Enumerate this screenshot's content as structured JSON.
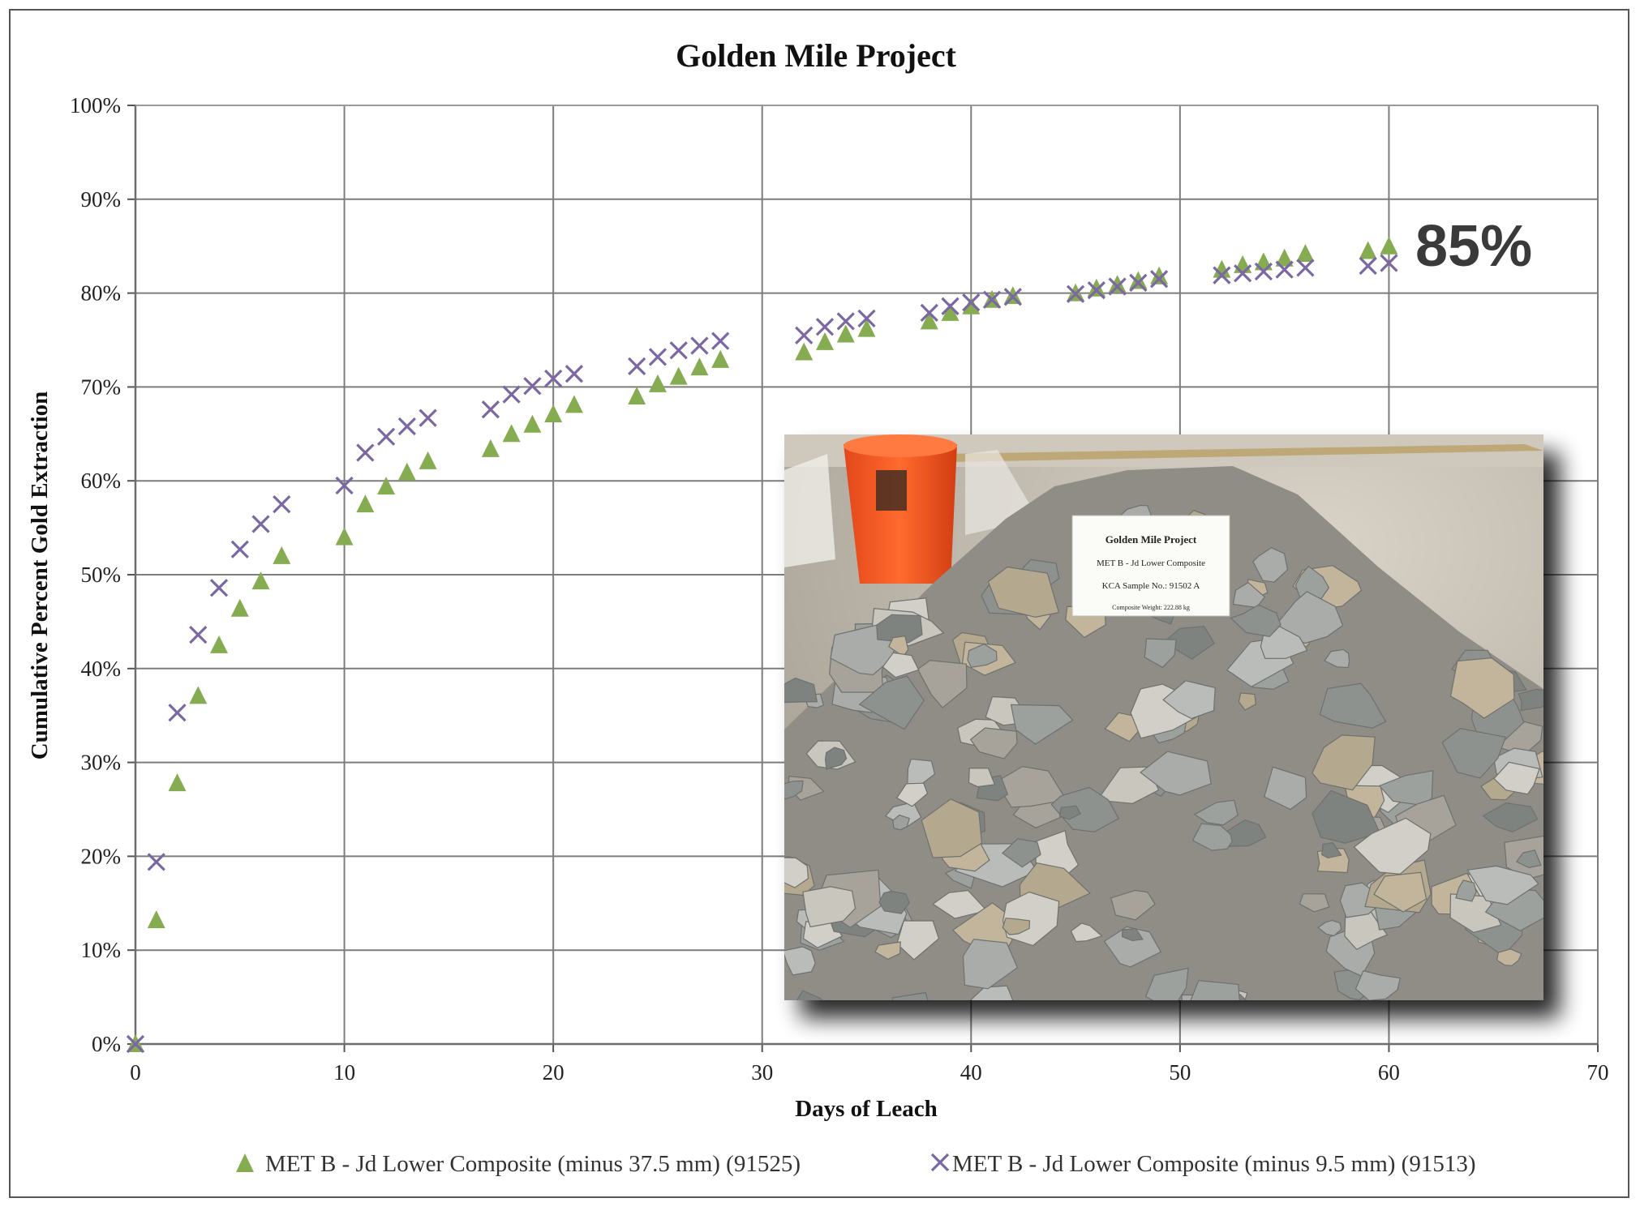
{
  "chart_data": {
    "type": "scatter",
    "title": "Golden Mile Project",
    "xlabel": "Days of Leach",
    "ylabel": "Cumulative Percent Gold Extraction",
    "xlim": [
      0,
      70
    ],
    "ylim": [
      0,
      100
    ],
    "x_ticks": [
      "0",
      "10",
      "20",
      "30",
      "40",
      "50",
      "60",
      "70"
    ],
    "y_ticks": [
      "0%",
      "10%",
      "20%",
      "30%",
      "40%",
      "50%",
      "60%",
      "70%",
      "80%",
      "90%",
      "100%"
    ],
    "grid": true,
    "legend_position": "bottom",
    "annotation": "85%",
    "series": [
      {
        "name": "MET B - Jd Lower Composite (minus 37.5 mm) (91525)",
        "marker": "triangle",
        "color": "#86AC52",
        "x": [
          0,
          1,
          2,
          3,
          4,
          5,
          6,
          7,
          10,
          11,
          12,
          13,
          14,
          17,
          18,
          19,
          20,
          21,
          24,
          25,
          26,
          27,
          28,
          32,
          33,
          34,
          35,
          38,
          39,
          40,
          41,
          42,
          45,
          46,
          47,
          48,
          49,
          52,
          53,
          54,
          55,
          56,
          59,
          60
        ],
        "y": [
          0,
          13.2,
          27.8,
          37.1,
          42.5,
          46.4,
          49.3,
          52.0,
          54.0,
          57.5,
          59.4,
          60.9,
          62.1,
          63.4,
          65.0,
          66.0,
          67.1,
          68.1,
          69.0,
          70.3,
          71.1,
          72.1,
          72.9,
          73.7,
          74.8,
          75.6,
          76.2,
          77.0,
          77.9,
          78.6,
          79.3,
          79.7,
          80.0,
          80.5,
          80.9,
          81.3,
          81.8,
          82.5,
          83.0,
          83.3,
          83.7,
          84.2,
          84.5,
          85.0
        ]
      },
      {
        "name": "MET B - Jd Lower Composite (minus 9.5 mm) (91513)",
        "marker": "x",
        "color": "#7B68A3",
        "x": [
          0,
          1,
          2,
          3,
          4,
          5,
          6,
          7,
          10,
          11,
          12,
          13,
          14,
          17,
          18,
          19,
          20,
          21,
          24,
          25,
          26,
          27,
          28,
          32,
          33,
          34,
          35,
          38,
          39,
          40,
          41,
          42,
          45,
          46,
          47,
          48,
          49,
          52,
          53,
          54,
          55,
          56,
          59,
          60
        ],
        "y": [
          0,
          19.4,
          35.3,
          43.6,
          48.6,
          52.7,
          55.4,
          57.5,
          59.5,
          63.0,
          64.7,
          65.8,
          66.7,
          67.6,
          69.2,
          70.1,
          70.9,
          71.4,
          72.2,
          73.2,
          73.9,
          74.4,
          74.9,
          75.5,
          76.4,
          77.0,
          77.3,
          77.9,
          78.6,
          79.0,
          79.3,
          79.6,
          79.9,
          80.3,
          80.7,
          81.1,
          81.5,
          81.9,
          82.1,
          82.3,
          82.5,
          82.7,
          82.9,
          83.2
        ]
      }
    ]
  },
  "photo": {
    "sign_lines": [
      "Golden Mile Project",
      "MET B - Jd Lower Composite",
      "KCA Sample No.: 91502 A",
      "Composite Weight: 222.88 kg"
    ]
  }
}
